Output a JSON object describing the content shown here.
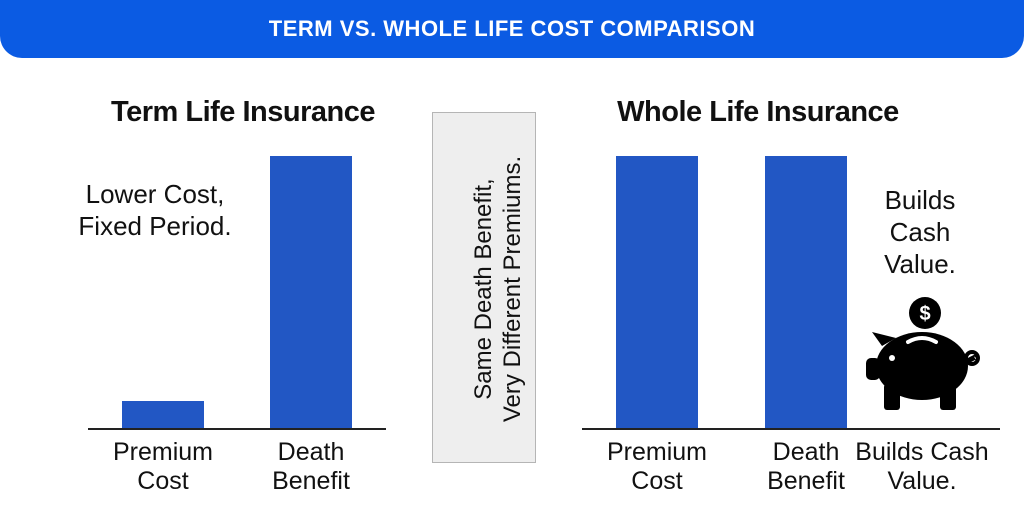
{
  "header": {
    "title": "TERM VS. WHOLE LIFE COST COMPARISON"
  },
  "chart_data": [
    {
      "type": "bar",
      "title": "Term Life Insurance",
      "annotation": "Lower Cost, Fixed Period.",
      "categories": [
        "Premium Cost",
        "Death Benefit"
      ],
      "values": [
        10,
        100
      ],
      "color": "#2257c4"
    },
    {
      "type": "bar",
      "title": "Whole Life Insurance",
      "annotation": "Builds Cash Value.",
      "categories": [
        "Premium Cost",
        "Death Benefit",
        "Builds Cash Value."
      ],
      "values": [
        100,
        100,
        null
      ],
      "color": "#2257c4"
    }
  ],
  "center_note": {
    "lines": [
      "Same Death Benefit,",
      "Very Different Premiums."
    ]
  }
}
